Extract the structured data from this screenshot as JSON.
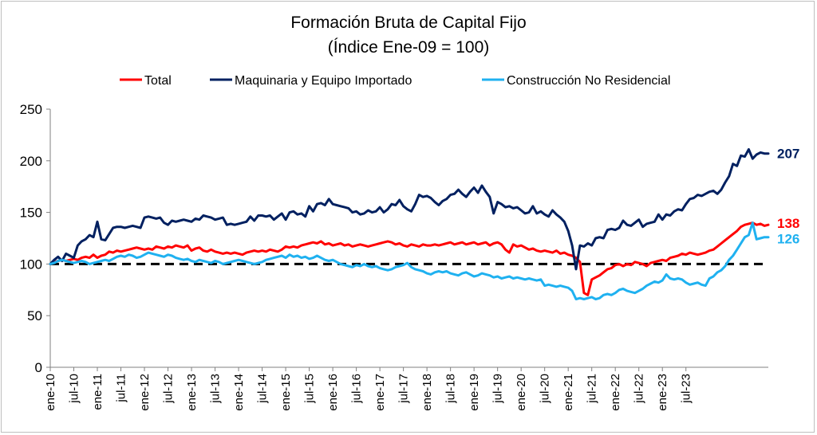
{
  "chart_data": {
    "type": "line",
    "title": "Formación Bruta de Capital Fijo",
    "subtitle": "(Índice Ene-09 = 100)",
    "ylim": [
      0,
      250
    ],
    "yticks": [
      0,
      50,
      100,
      150,
      200,
      250
    ],
    "x_start": "2010-01",
    "x_tick_labels": [
      "ene-10",
      "jul-10",
      "ene-11",
      "jul-11",
      "ene-12",
      "jul-12",
      "ene-13",
      "jul-13",
      "ene-14",
      "jul-14",
      "ene-15",
      "jul-15",
      "ene-16",
      "jul-16",
      "ene-17",
      "jul-17",
      "ene-18",
      "jul-18",
      "ene-19",
      "jul-19",
      "ene-20",
      "jul-20",
      "ene-21",
      "jul-21",
      "ene-22",
      "jul-22",
      "ene-23",
      "jul-23"
    ],
    "grid": false,
    "legend_position": "top",
    "reference_line": {
      "value": 100,
      "style": "dashed",
      "color": "#000000"
    },
    "series": [
      {
        "name": "Total",
        "color": "#ff0000",
        "end_label": "138",
        "values": [
          100,
          102,
          103,
          104,
          103,
          104,
          105,
          104,
          106,
          107,
          106,
          109,
          106,
          108,
          109,
          112,
          111,
          113,
          112,
          113,
          114,
          115,
          116,
          115,
          114,
          115,
          114,
          117,
          116,
          115,
          117,
          116,
          118,
          117,
          116,
          118,
          113,
          115,
          116,
          113,
          112,
          114,
          112,
          111,
          110,
          111,
          110,
          111,
          110,
          109,
          111,
          112,
          113,
          112,
          113,
          112,
          114,
          113,
          112,
          114,
          117,
          116,
          117,
          116,
          118,
          119,
          120,
          121,
          120,
          122,
          119,
          120,
          118,
          119,
          120,
          118,
          119,
          117,
          118,
          119,
          118,
          117,
          118,
          119,
          120,
          121,
          122,
          121,
          119,
          120,
          118,
          117,
          119,
          118,
          117,
          119,
          118,
          118,
          119,
          118,
          119,
          120,
          121,
          119,
          120,
          121,
          119,
          120,
          121,
          119,
          120,
          121,
          118,
          120,
          121,
          119,
          114,
          111,
          119,
          117,
          118,
          116,
          114,
          115,
          113,
          112,
          113,
          112,
          111,
          113,
          110,
          111,
          109,
          108,
          106,
          102,
          72,
          70,
          85,
          87,
          89,
          92,
          95,
          96,
          99,
          100,
          98,
          100,
          99,
          102,
          101,
          100,
          98,
          101,
          102,
          103,
          104,
          103,
          106,
          107,
          108,
          110,
          109,
          111,
          110,
          109,
          110,
          111,
          113,
          114,
          117,
          120,
          123,
          126,
          129,
          132,
          136,
          138,
          139,
          140,
          138,
          139,
          137,
          138
        ]
      },
      {
        "name": "Maquinaria y Equipo Importado",
        "color": "#002060",
        "end_label": "207",
        "values": [
          100,
          104,
          107,
          103,
          110,
          108,
          106,
          118,
          122,
          124,
          128,
          126,
          141,
          124,
          123,
          129,
          135,
          136,
          136,
          135,
          136,
          137,
          136,
          135,
          145,
          146,
          145,
          144,
          145,
          140,
          138,
          142,
          141,
          142,
          143,
          142,
          141,
          144,
          143,
          147,
          146,
          145,
          143,
          144,
          145,
          138,
          139,
          138,
          139,
          140,
          141,
          146,
          142,
          147,
          147,
          146,
          147,
          143,
          146,
          149,
          143,
          150,
          151,
          148,
          149,
          146,
          156,
          151,
          158,
          159,
          157,
          163,
          158,
          157,
          156,
          155,
          154,
          150,
          151,
          148,
          149,
          152,
          150,
          151,
          155,
          150,
          153,
          158,
          157,
          162,
          156,
          153,
          151,
          158,
          167,
          165,
          166,
          164,
          160,
          157,
          161,
          163,
          167,
          168,
          172,
          168,
          165,
          170,
          174,
          169,
          176,
          170,
          165,
          149,
          160,
          158,
          155,
          156,
          154,
          155,
          152,
          149,
          150,
          156,
          149,
          151,
          148,
          146,
          152,
          148,
          145,
          141,
          132,
          118,
          95,
          118,
          117,
          120,
          118,
          125,
          126,
          125,
          133,
          134,
          133,
          135,
          142,
          138,
          137,
          140,
          143,
          136,
          139,
          140,
          141,
          148,
          143,
          148,
          147,
          151,
          153,
          152,
          158,
          163,
          164,
          167,
          166,
          168,
          170,
          171,
          168,
          172,
          179,
          185,
          197,
          195,
          205,
          204,
          211,
          202,
          206,
          208,
          207,
          207
        ]
      },
      {
        "name": "Construcción No Residencial",
        "color": "#1fb1f0",
        "end_label": "126",
        "values": [
          100,
          101,
          103,
          104,
          103,
          102,
          101,
          102,
          103,
          102,
          100,
          101,
          102,
          103,
          104,
          103,
          105,
          107,
          108,
          107,
          109,
          108,
          106,
          107,
          109,
          111,
          110,
          109,
          108,
          107,
          109,
          108,
          106,
          105,
          104,
          105,
          103,
          102,
          104,
          103,
          102,
          101,
          103,
          102,
          100,
          101,
          102,
          103,
          104,
          103,
          102,
          101,
          100,
          101,
          102,
          104,
          105,
          106,
          107,
          108,
          106,
          109,
          107,
          108,
          106,
          107,
          105,
          106,
          108,
          106,
          104,
          103,
          104,
          102,
          100,
          99,
          98,
          97,
          99,
          98,
          100,
          98,
          97,
          98,
          96,
          95,
          94,
          95,
          97,
          98,
          99,
          101,
          97,
          95,
          94,
          93,
          91,
          90,
          92,
          93,
          92,
          93,
          91,
          90,
          89,
          91,
          92,
          90,
          88,
          89,
          91,
          90,
          89,
          87,
          88,
          86,
          87,
          88,
          86,
          87,
          86,
          85,
          86,
          85,
          84,
          85,
          79,
          80,
          79,
          78,
          79,
          78,
          77,
          74,
          66,
          67,
          66,
          67,
          68,
          66,
          67,
          70,
          71,
          70,
          72,
          75,
          76,
          74,
          73,
          72,
          74,
          76,
          79,
          81,
          83,
          82,
          84,
          90,
          86,
          85,
          86,
          85,
          82,
          80,
          81,
          82,
          80,
          79,
          86,
          88,
          92,
          94,
          98,
          104,
          108,
          114,
          120,
          126,
          128,
          140,
          124,
          125,
          126,
          126
        ]
      }
    ]
  }
}
